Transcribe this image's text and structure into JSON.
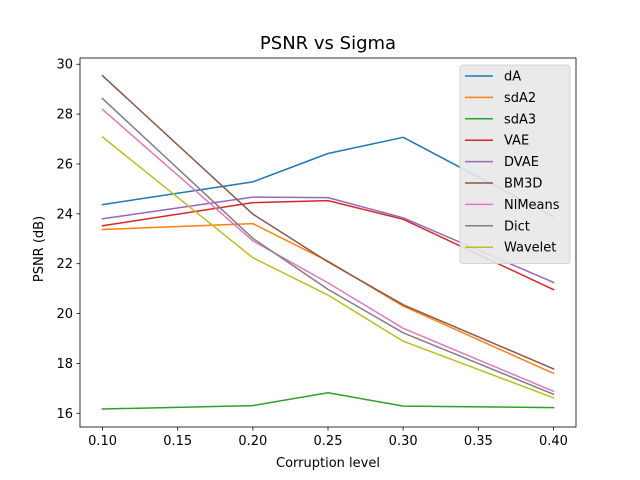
{
  "chart_data": {
    "type": "line",
    "title": "PSNR vs Sigma",
    "xlabel": "Corruption level",
    "ylabel": "PSNR (dB)",
    "x": [
      0.1,
      0.2,
      0.25,
      0.3,
      0.4
    ],
    "xlim": [
      0.085,
      0.415
    ],
    "ylim": [
      15.45,
      30.25
    ],
    "xticks": [
      "0.10",
      "0.15",
      "0.20",
      "0.25",
      "0.30",
      "0.35",
      "0.40"
    ],
    "yticks": [
      "16",
      "18",
      "20",
      "22",
      "24",
      "26",
      "28",
      "30"
    ],
    "grid": false,
    "legend_position": "upper-right",
    "series": [
      {
        "name": "dA",
        "color": "#1f77b4",
        "values": [
          24.37,
          25.28,
          26.42,
          27.07,
          23.89
        ]
      },
      {
        "name": "sdA2",
        "color": "#ff7f0e",
        "values": [
          23.37,
          23.61,
          22.1,
          20.3,
          17.6
        ]
      },
      {
        "name": "sdA3",
        "color": "#2ca02c",
        "values": [
          16.17,
          16.31,
          16.82,
          16.29,
          16.23
        ]
      },
      {
        "name": "VAE",
        "color": "#d62728",
        "values": [
          23.52,
          24.45,
          24.53,
          23.78,
          20.96
        ]
      },
      {
        "name": "DVAE",
        "color": "#9467bd",
        "values": [
          23.8,
          24.67,
          24.65,
          23.84,
          21.25
        ]
      },
      {
        "name": "BM3D",
        "color": "#8c564b",
        "values": [
          29.54,
          23.99,
          22.07,
          20.35,
          17.78
        ]
      },
      {
        "name": "NlMeans",
        "color": "#e377c2",
        "values": [
          28.19,
          22.92,
          21.23,
          19.41,
          16.88
        ]
      },
      {
        "name": "Dict",
        "color": "#7f7f7f",
        "values": [
          28.62,
          23.02,
          20.97,
          19.23,
          16.76
        ]
      },
      {
        "name": "Wavelet",
        "color": "#bcbd22",
        "values": [
          27.08,
          22.24,
          20.74,
          18.89,
          16.62
        ]
      }
    ]
  }
}
